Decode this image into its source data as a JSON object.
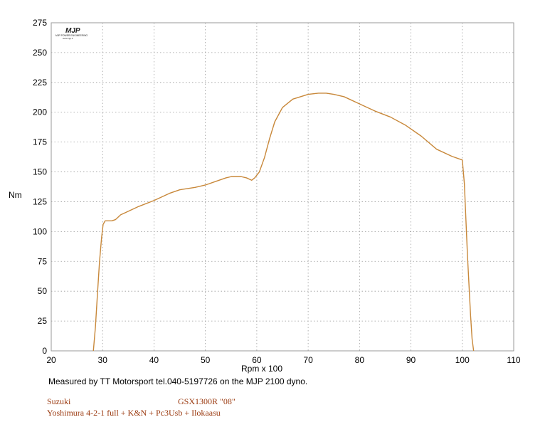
{
  "chart_data": {
    "type": "line",
    "title": "",
    "xlabel": "Rpm x 100",
    "ylabel": "Nm",
    "xlim": [
      20,
      110
    ],
    "ylim": [
      0,
      275
    ],
    "x_ticks": [
      20,
      30,
      40,
      50,
      60,
      70,
      80,
      90,
      100,
      110
    ],
    "y_ticks": [
      0,
      25,
      50,
      75,
      100,
      125,
      150,
      175,
      200,
      225,
      250,
      275
    ],
    "grid": true,
    "line_color": "#c8883a",
    "series": [
      {
        "x": [
          28.2,
          28.6,
          29.0,
          29.4,
          29.8,
          30.1,
          30.5,
          31.0,
          31.8,
          32.5,
          33.5,
          35,
          37,
          40,
          43,
          45,
          48,
          50,
          52,
          54,
          55,
          57,
          58,
          59,
          59.6,
          60.5,
          61.5,
          62.5,
          63.5,
          65,
          67,
          68.5,
          70,
          72,
          73.5,
          75,
          77,
          80,
          83,
          86,
          89,
          92,
          95,
          98,
          100,
          100.4,
          100.7,
          101.0,
          101.3,
          101.6,
          101.9,
          102.2
        ],
        "y": [
          0,
          20,
          48,
          75,
          95,
          106,
          109,
          109,
          109,
          110,
          114,
          117,
          121,
          126,
          132,
          135,
          137,
          139,
          142,
          145,
          146,
          146,
          145,
          143,
          145,
          150,
          162,
          178,
          192,
          204,
          211,
          213,
          215,
          216,
          216,
          215,
          213,
          207,
          201,
          196,
          189,
          180,
          169,
          163,
          160,
          140,
          110,
          80,
          55,
          30,
          10,
          0
        ]
      }
    ]
  },
  "caption": "Measured by TT Motorsport tel.040-5197726 on the MJP 2100 dyno.",
  "info": {
    "make": "Suzuki",
    "model": "GSX1300R \"08\"",
    "mods": "Yoshimura  4-2-1 full + K&N + Pc3Usb + Ilokaasu"
  },
  "logo": {
    "mark": "MJP",
    "subtitle": "MJP POWER ENGINEERING",
    "url": "www.mjp.fi"
  }
}
